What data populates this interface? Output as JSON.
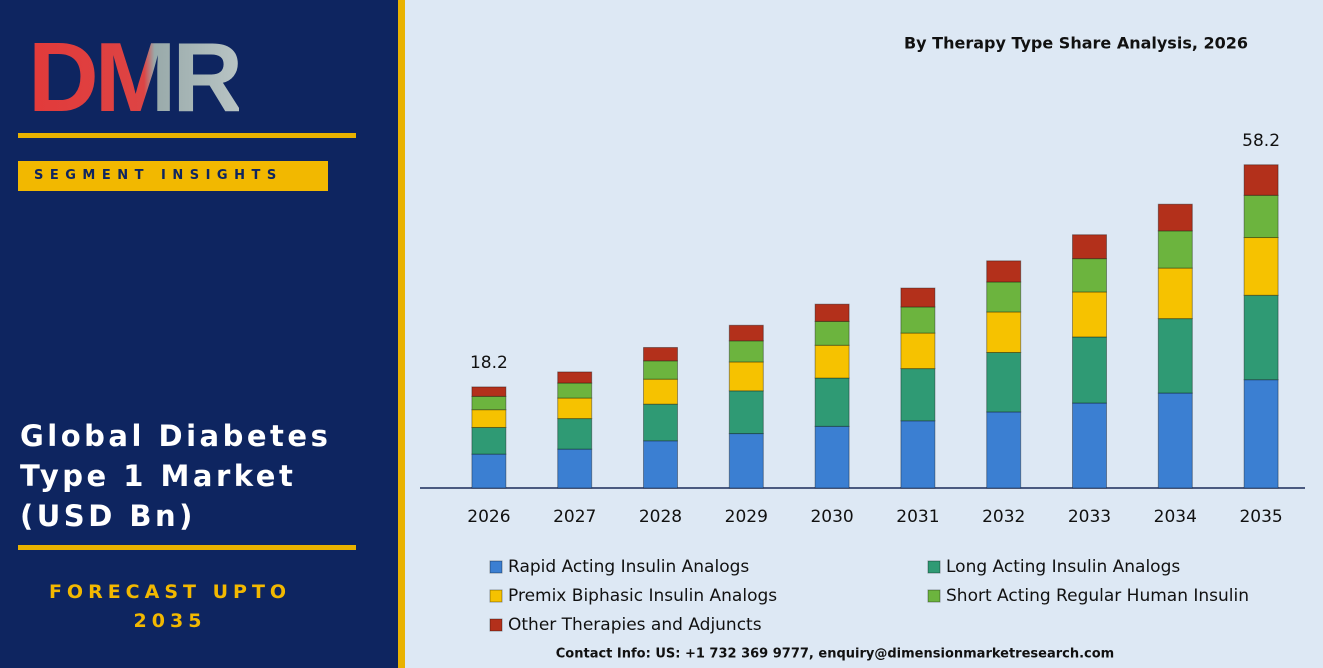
{
  "sidebar": {
    "logo": "DMR",
    "tag": "SEGMENT INSIGHTS",
    "heading": "Global Diabetes Type 1 Market (USD Bn)",
    "forecast": "FORECAST UPTO 2035"
  },
  "chart_data": {
    "type": "stacked_bar",
    "title": "By Therapy Type  Share Analysis, 2026",
    "categories": [
      "2026",
      "2027",
      "2028",
      "2029",
      "2030",
      "2031",
      "2032",
      "2033",
      "2034",
      "2035"
    ],
    "series": [
      {
        "name": "Rapid Acting Insulin Analogs",
        "color": "#3b7fd2",
        "values": [
          6.1,
          7.0,
          8.5,
          9.8,
          11.1,
          12.1,
          13.7,
          15.3,
          17.1,
          19.5
        ]
      },
      {
        "name": "Long Acting Insulin Analogs",
        "color": "#2f9a74",
        "values": [
          4.8,
          5.5,
          6.6,
          7.7,
          8.7,
          9.4,
          10.7,
          11.9,
          13.4,
          15.2
        ]
      },
      {
        "name": "Premix Biphasic Insulin Analogs",
        "color": "#f6c200",
        "values": [
          3.2,
          3.7,
          4.5,
          5.2,
          5.9,
          6.4,
          7.3,
          8.1,
          9.1,
          10.4
        ]
      },
      {
        "name": "Short Acting Regular Human Insulin",
        "color": "#6cb43e",
        "values": [
          2.4,
          2.7,
          3.3,
          3.8,
          4.3,
          4.7,
          5.4,
          6.0,
          6.7,
          7.6
        ]
      },
      {
        "name": "Other Therapies and Adjuncts",
        "color": "#b3301b",
        "values": [
          1.7,
          2.0,
          2.4,
          2.8,
          3.1,
          3.4,
          3.8,
          4.3,
          4.8,
          5.5
        ]
      }
    ],
    "annotations": [
      {
        "x": "2026",
        "value": 18.2
      },
      {
        "x": "2035",
        "value": 58.2
      }
    ],
    "ylim": [
      0,
      65
    ]
  },
  "footer": "Contact Info: US: +1 732 369 9777, enquiry@dimensionmarketresearch.com"
}
